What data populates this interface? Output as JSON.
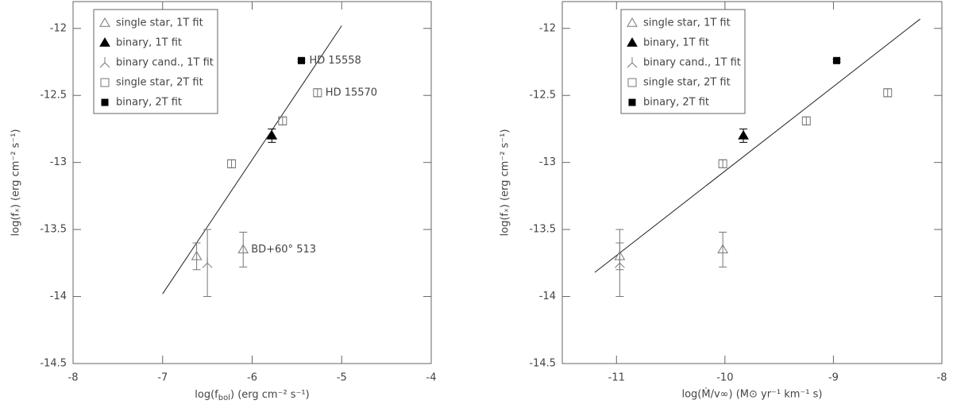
{
  "chart_data": [
    {
      "type": "scatter",
      "xlabel": [
        "log(f",
        "bol",
        ") (erg cm⁻² s⁻¹)"
      ],
      "ylabel": "log(fₓ) (erg cm⁻² s⁻¹)",
      "xlim": [
        -8,
        -4
      ],
      "xticks": [
        -8,
        -7,
        -6,
        -5,
        -4
      ],
      "ylim": [
        -14.5,
        -11.8
      ],
      "yticks": [
        -14.5,
        -14,
        -13.5,
        -13,
        -12.5,
        -12
      ],
      "series": [
        {
          "name": "single star, 1T fit",
          "marker": "open-triangle",
          "color": "#777777",
          "x": [
            -6.62,
            -6.1
          ],
          "values": [
            -13.7,
            -13.65
          ],
          "errors": [
            0.1,
            0.13
          ],
          "point_labels": [
            null,
            "BD+60° 513"
          ]
        },
        {
          "name": "binary, 1T fit",
          "marker": "filled-triangle",
          "color": "#000000",
          "x": [
            -5.78
          ],
          "values": [
            -12.8
          ],
          "errors": [
            0.05
          ]
        },
        {
          "name": "binary cand., 1T fit",
          "marker": "prong",
          "color": "#777777",
          "x": [
            -6.5
          ],
          "values": [
            -13.75
          ],
          "errors": [
            0.25
          ]
        },
        {
          "name": "single star, 2T fit",
          "marker": "open-square",
          "color": "#777777",
          "x": [
            -6.23,
            -5.66,
            -5.27
          ],
          "values": [
            -13.01,
            -12.69,
            -12.48
          ],
          "errors": [
            0.03,
            0.03,
            0.03
          ],
          "point_labels": [
            null,
            null,
            "HD 15570"
          ]
        },
        {
          "name": "binary, 2T fit",
          "marker": "filled-square",
          "color": "#000000",
          "x": [
            -5.45
          ],
          "values": [
            -12.24
          ],
          "errors": [
            0.01
          ],
          "point_labels": [
            "HD 15558"
          ]
        }
      ],
      "fit_line": {
        "x": [
          -7,
          -5
        ],
        "values": [
          -13.98,
          -11.98
        ]
      }
    },
    {
      "type": "scatter",
      "xlabel": "log(Ṁ/v∞) (M⊙ yr⁻¹ km⁻¹ s)",
      "ylabel": "log(fₓ) (erg cm⁻² s⁻¹)",
      "xlim": [
        -11.5,
        -8
      ],
      "xticks": [
        -11,
        -10,
        -9,
        -8
      ],
      "ylim": [
        -14.5,
        -11.8
      ],
      "yticks": [
        -14.5,
        -14,
        -13.5,
        -13,
        -12.5,
        -12
      ],
      "series": [
        {
          "name": "single star, 1T fit",
          "marker": "open-triangle",
          "color": "#777777",
          "x": [
            -10.97,
            -10.02
          ],
          "values": [
            -13.7,
            -13.65
          ],
          "errors": [
            0.1,
            0.13
          ]
        },
        {
          "name": "binary, 1T fit",
          "marker": "filled-triangle",
          "color": "#000000",
          "x": [
            -9.83
          ],
          "values": [
            -12.8
          ],
          "errors": [
            0.05
          ]
        },
        {
          "name": "binary cand., 1T fit",
          "marker": "prong",
          "color": "#777777",
          "x": [
            -10.97
          ],
          "values": [
            -13.75
          ],
          "errors": [
            0.25
          ]
        },
        {
          "name": "single star, 2T fit",
          "marker": "open-square",
          "color": "#777777",
          "x": [
            -10.02,
            -9.25,
            -8.5
          ],
          "values": [
            -13.01,
            -12.69,
            -12.48
          ],
          "errors": [
            0.03,
            0.03,
            0.03
          ]
        },
        {
          "name": "binary, 2T fit",
          "marker": "filled-square",
          "color": "#000000",
          "x": [
            -8.97
          ],
          "values": [
            -12.24
          ],
          "errors": [
            0.01
          ]
        }
      ],
      "fit_line": {
        "x": [
          -11.2,
          -8.2
        ],
        "values": [
          -13.82,
          -11.93
        ]
      }
    }
  ]
}
